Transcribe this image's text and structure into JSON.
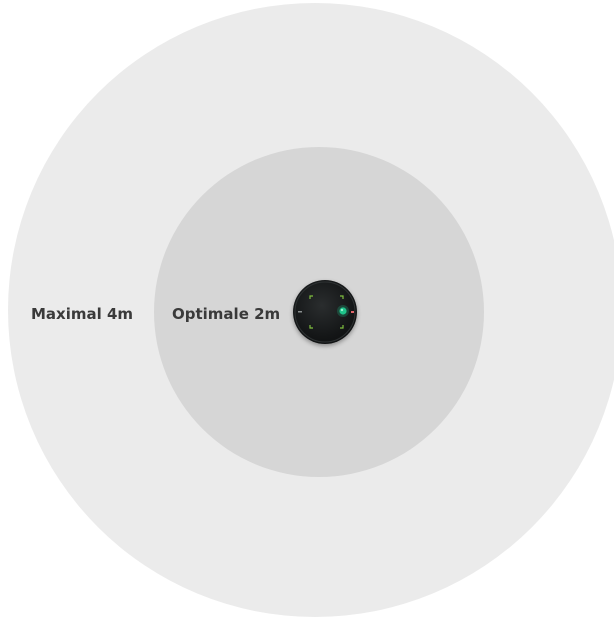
{
  "labels": {
    "maximal": "Maximal 4m",
    "optimal": "Optimale 2m"
  },
  "colors": {
    "outer_zone": "#ebebeb",
    "inner_zone": "#d6d6d6",
    "device_body": "#141617",
    "led": "#1fc48a",
    "corner_marks": "#7fbf3f",
    "indicator": "#e0656a"
  },
  "icons": {
    "device": "camera-sensor-icon",
    "led": "status-led-icon"
  }
}
